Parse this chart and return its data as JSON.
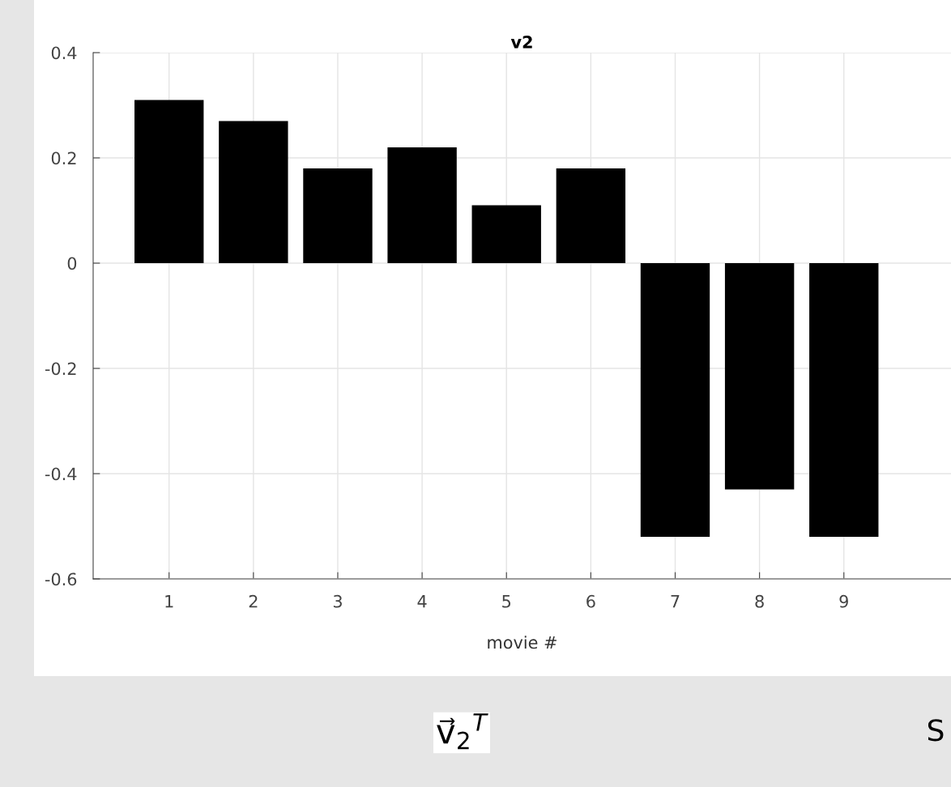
{
  "chart_data": {
    "type": "bar",
    "title": "v2",
    "xlabel": "movie #",
    "categories": [
      "1",
      "2",
      "3",
      "4",
      "5",
      "6",
      "7",
      "8",
      "9"
    ],
    "values": [
      0.31,
      0.27,
      0.18,
      0.22,
      0.11,
      0.18,
      -0.52,
      -0.43,
      -0.52
    ],
    "color": "#000000",
    "ylim": [
      -0.6,
      0.4
    ],
    "yticks": [
      -0.6,
      -0.4,
      -0.2,
      0,
      0.2,
      0.4
    ],
    "grid": true,
    "annotations": [
      "v⃗$_{2}$$^{T}$",
      "S"
    ]
  }
}
